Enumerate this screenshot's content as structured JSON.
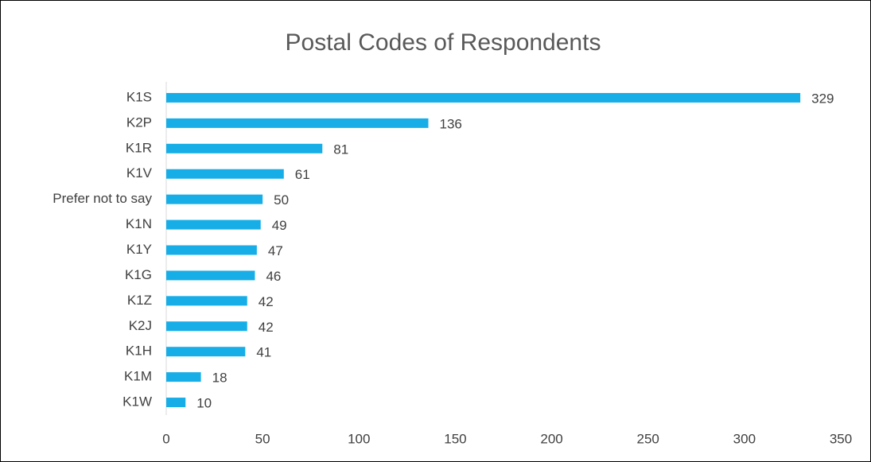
{
  "chart_data": {
    "type": "bar",
    "orientation": "horizontal",
    "title": "Postal Codes of Respondents",
    "categories": [
      "K1S",
      "K2P",
      "K1R",
      "K1V",
      "Prefer not to say",
      "K1N",
      "K1Y",
      "K1G",
      "K1Z",
      "K2J",
      "K1H",
      "K1M",
      "K1W"
    ],
    "values": [
      329,
      136,
      81,
      61,
      50,
      49,
      47,
      46,
      42,
      42,
      41,
      18,
      10
    ],
    "color": "#17aee8",
    "xlim": [
      0,
      350
    ],
    "xticks": [
      0,
      50,
      100,
      150,
      200,
      250,
      300,
      350
    ],
    "grid": false
  }
}
